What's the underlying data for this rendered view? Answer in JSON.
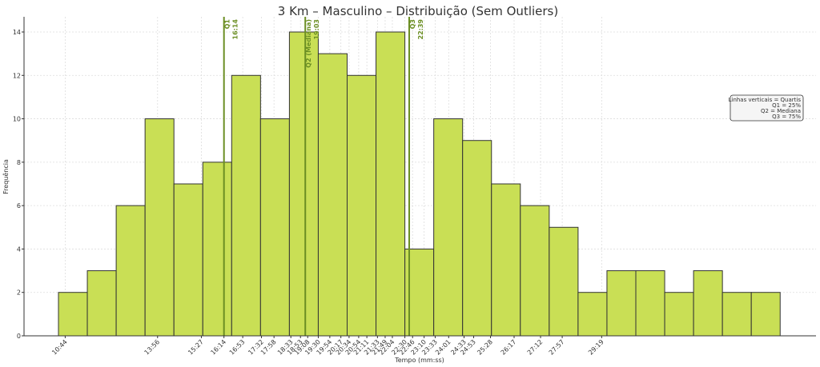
{
  "chart_data": {
    "type": "bar",
    "title": "3 Km – Masculino – Distribuição (Sem Outliers)",
    "xlabel": "Tempo (mm:ss)",
    "ylabel": "Frequência",
    "ylim": [
      0,
      14.7
    ],
    "yticks": [
      0,
      2,
      4,
      6,
      8,
      10,
      12,
      14
    ],
    "grid": true,
    "bin_start_seconds": 630,
    "bin_width_seconds": 60,
    "values": [
      2,
      3,
      6,
      10,
      7,
      8,
      12,
      10,
      14,
      13,
      12,
      14,
      4,
      10,
      9,
      7,
      6,
      5,
      2,
      3,
      3,
      2,
      3,
      2,
      2
    ],
    "xtick_labels": [
      "10:44",
      "13:56",
      "15:27",
      "16:14",
      "16:53",
      "17:32",
      "17:58",
      "18:33",
      "18:53",
      "19:08",
      "19:30",
      "19:54",
      "20:17",
      "20:34",
      "20:54",
      "21:11",
      "21:33",
      "21:49",
      "22:04",
      "22:30",
      "22:46",
      "23:10",
      "23:33",
      "24:01",
      "24:33",
      "24:53",
      "25:28",
      "26:17",
      "27:12",
      "27:57",
      "29:19"
    ],
    "quartiles": [
      {
        "label": "Q1",
        "value": "16:14",
        "color": "#6b8e23"
      },
      {
        "label": "Q2 (Mediana)",
        "value": "19:03",
        "color": "#6b8e23"
      },
      {
        "label": "Q3",
        "value": "22:39",
        "color": "#6b8e23"
      }
    ],
    "bar_color": "#c9df55",
    "bar_edge_color": "#333333",
    "legend": {
      "placement": "right",
      "lines": [
        "Linhas verticais = Quartis",
        "Q1 = 25%",
        "Q2 = Mediana",
        "Q3 = 75%"
      ]
    }
  }
}
